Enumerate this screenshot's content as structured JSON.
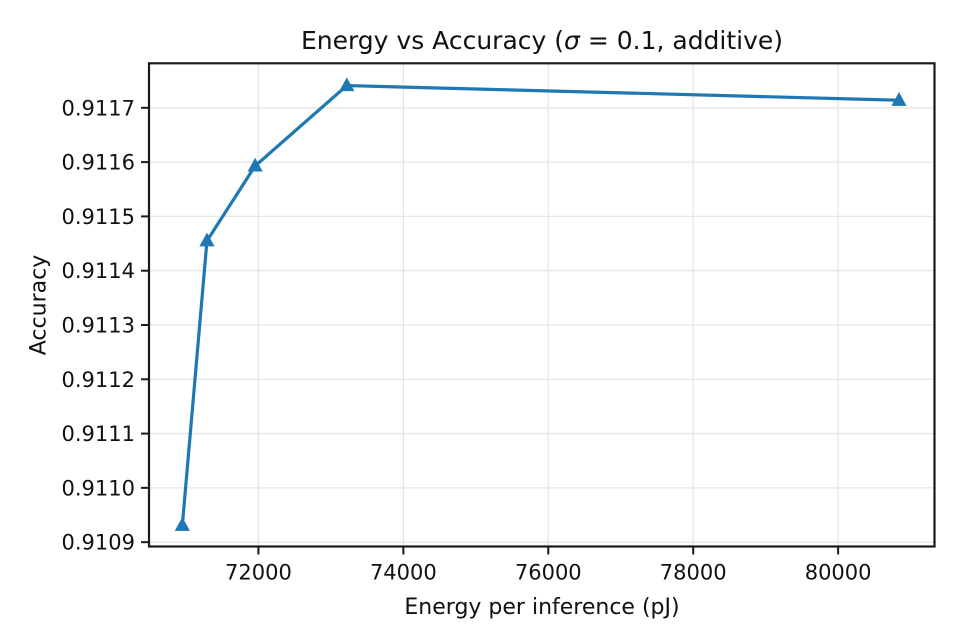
{
  "chart_data": {
    "type": "line",
    "title": "Energy vs Accuracy (σ = 0.1, additive)",
    "title_parts": {
      "prefix": "Energy vs Accuracy (",
      "sigma": "σ",
      "rest": " = 0.1, additive)"
    },
    "xlabel": "Energy per inference (pJ)",
    "ylabel": "Accuracy",
    "series": [
      {
        "name": "accuracy-vs-energy",
        "x": [
          70950,
          71290,
          71955,
          73220,
          80840
        ],
        "y": [
          0.910931,
          0.911455,
          0.911593,
          0.911741,
          0.911714
        ]
      }
    ],
    "xlim": [
      70490,
      81330
    ],
    "ylim": [
      0.910892,
      0.911782
    ],
    "xticks": {
      "values": [
        72000,
        74000,
        76000,
        78000,
        80000
      ],
      "labels": [
        "72000",
        "74000",
        "76000",
        "78000",
        "80000"
      ]
    },
    "yticks": {
      "values": [
        0.9109,
        0.911,
        0.9111,
        0.9112,
        0.9113,
        0.9114,
        0.9115,
        0.9116,
        0.9117
      ],
      "labels": [
        "0.9109",
        "0.9110",
        "0.9111",
        "0.9112",
        "0.9113",
        "0.9114",
        "0.9115",
        "0.9116",
        "0.9117"
      ]
    },
    "grid": true,
    "marker": "triangle-up",
    "colors": {
      "line": "#1f77b4",
      "grid": "#e6e6e6",
      "spine": "#1a1a1a",
      "text": "#111111"
    }
  }
}
